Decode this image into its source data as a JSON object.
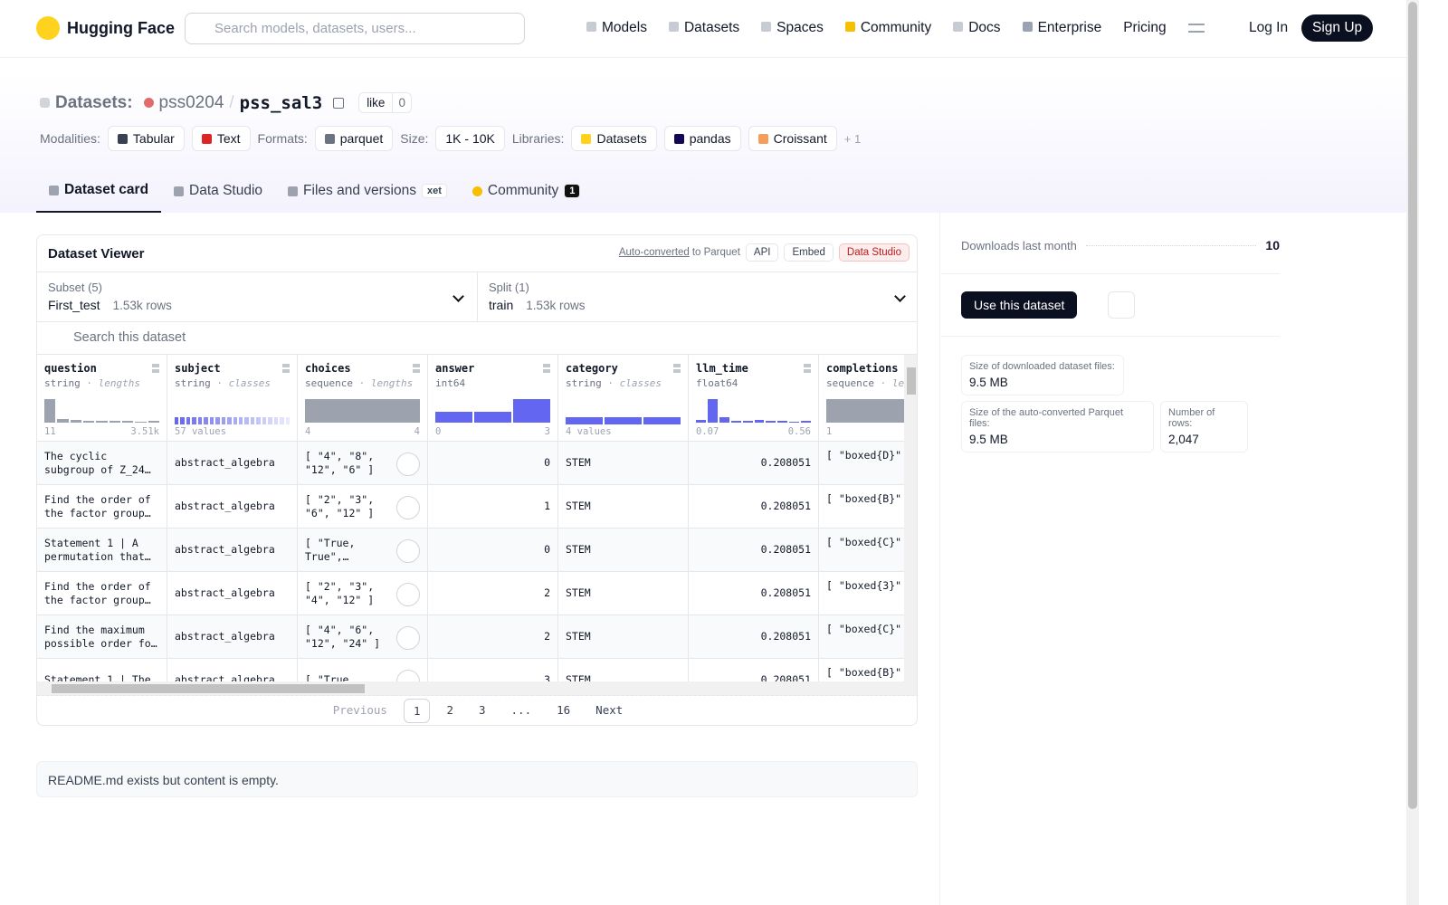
{
  "nav": {
    "brand": "Hugging Face",
    "search_placeholder": "Search models, datasets, users...",
    "links": [
      "Models",
      "Datasets",
      "Spaces",
      "Community",
      "Docs",
      "Enterprise",
      "Pricing"
    ],
    "login": "Log In",
    "signup": "Sign Up"
  },
  "header": {
    "section": "Datasets:",
    "owner": "pss0204",
    "separator": "/",
    "name": "pss_sal3",
    "like": "like",
    "likes": 0,
    "tags": {
      "modalities_label": "Modalities:",
      "modalities": [
        "Tabular",
        "Text"
      ],
      "formats_label": "Formats:",
      "formats": [
        "parquet"
      ],
      "size_label": "Size:",
      "size": "1K - 10K",
      "libraries_label": "Libraries:",
      "libraries": [
        "Datasets",
        "pandas",
        "Croissant"
      ],
      "more": "+ 1"
    }
  },
  "tabs": [
    {
      "label": "Dataset card"
    },
    {
      "label": "Data Studio"
    },
    {
      "label": "Files and versions",
      "badge": "xet"
    },
    {
      "label": "Community",
      "badge": 1
    }
  ],
  "viewer": {
    "title": "Dataset Viewer",
    "auto_converted": "Auto-converted",
    "to_parquet": "to Parquet",
    "buttons": [
      "API",
      "Embed",
      "Data Studio"
    ],
    "subset": {
      "label": "Subset (5)",
      "value": "First_test",
      "rows": "1.53k rows"
    },
    "split": {
      "label": "Split (1)",
      "value": "train",
      "rows": "1.53k rows"
    },
    "search": "Search this dataset",
    "columns": [
      {
        "name": "question",
        "type": "string",
        "stat": "lengths",
        "min": "11",
        "max": "3.51k"
      },
      {
        "name": "subject",
        "type": "string",
        "stat": "classes",
        "min": "57 values"
      },
      {
        "name": "choices",
        "type": "sequence",
        "stat": "lengths",
        "min": "4",
        "max": "4"
      },
      {
        "name": "answer",
        "type": "int64",
        "min": "0",
        "max": "3"
      },
      {
        "name": "category",
        "type": "string",
        "stat": "classes",
        "min": "4 values"
      },
      {
        "name": "llm_time",
        "type": "float64",
        "min": "0.07",
        "max": "0.56"
      },
      {
        "name": "completions",
        "type": "sequence",
        "stat": "le",
        "min": "1"
      }
    ],
    "rows": [
      [
        "The cyclic subgroup of Z_24…",
        "abstract_algebra",
        "[ \"4\", \"8\", \"12\", \"6\" ]",
        0,
        "STEM",
        0.208051,
        "[ \"boxed{D}\""
      ],
      [
        "Find the order of the factor group…",
        "abstract_algebra",
        "[ \"2\", \"3\", \"6\", \"12\" ]",
        1,
        "STEM",
        0.208051,
        "[ \"boxed{B}\""
      ],
      [
        "Statement 1 | A permutation that…",
        "abstract_algebra",
        "[ \"True, True\",…",
        0,
        "STEM",
        0.208051,
        "[ \"boxed{C}\""
      ],
      [
        "Find the order of the factor group…",
        "abstract_algebra",
        "[ \"2\", \"3\", \"4\", \"12\" ]",
        2,
        "STEM",
        0.208051,
        "[ \"boxed{3}\""
      ],
      [
        "Find the maximum possible order fo…",
        "abstract_algebra",
        "[ \"4\", \"6\", \"12\", \"24\" ]",
        2,
        "STEM",
        0.208051,
        "[ \"boxed{C}\""
      ],
      [
        "Statement 1 | The",
        "abstract_algebra",
        "[ \"True,",
        3,
        "STEM",
        0.208051,
        "[ \"boxed{B}\""
      ]
    ],
    "pagination": {
      "previous": "Previous",
      "pages": [
        1,
        2,
        3,
        "...",
        16
      ],
      "next": "Next"
    }
  },
  "readme": "README.md exists but content is empty.",
  "sidebar": {
    "downloads_label": "Downloads last month",
    "downloads": 10,
    "use": "Use this dataset",
    "stats": [
      {
        "label": "Size of downloaded dataset files:",
        "value": "9.5 MB"
      },
      {
        "label": "Size of the auto-converted Parquet files:",
        "value": "9.5 MB"
      },
      {
        "label": "Number of rows:",
        "value": "2,047"
      }
    ]
  }
}
